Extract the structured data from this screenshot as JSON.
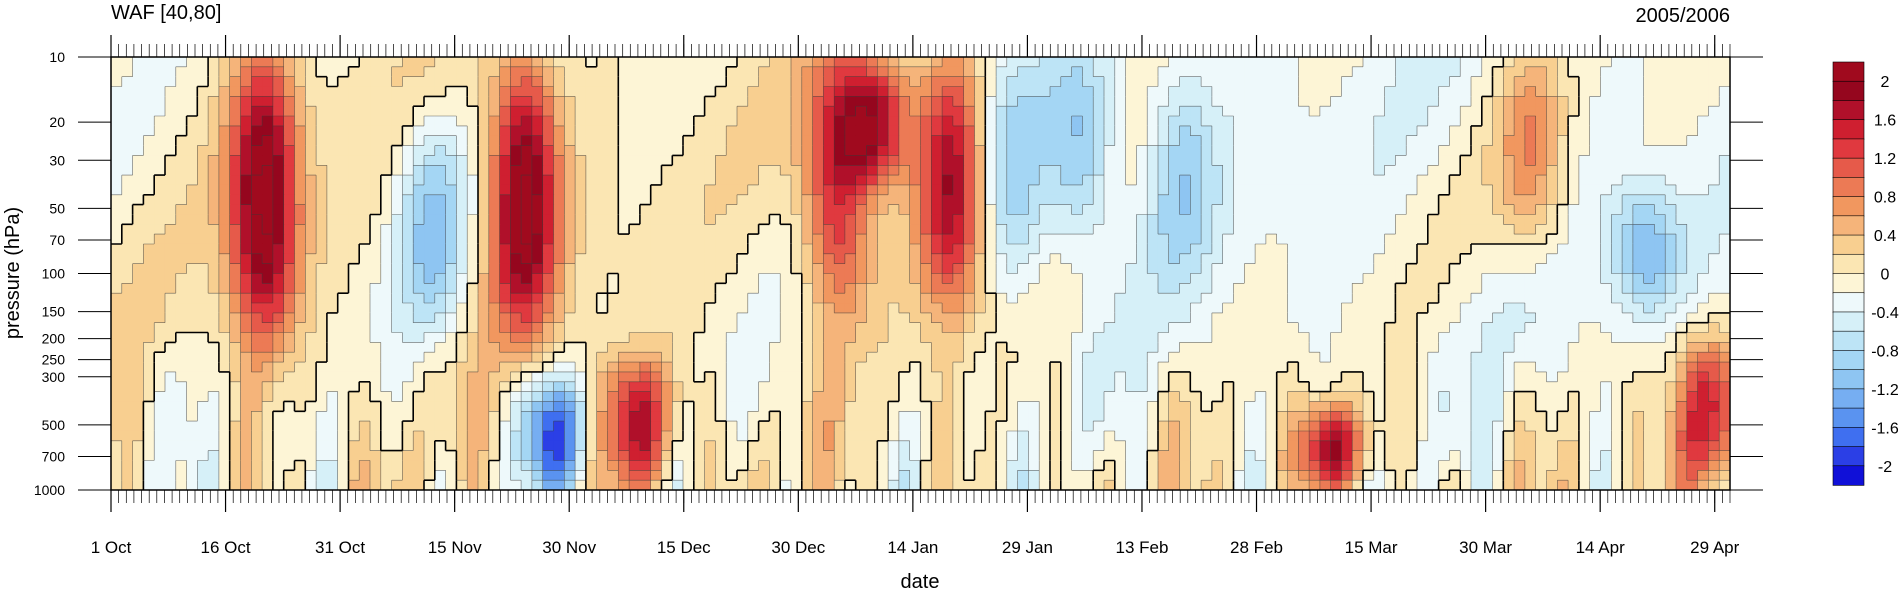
{
  "chart_data": {
    "type": "heatmap",
    "title_left": "WAF [40,80]",
    "title_right": "2005/2006",
    "xlabel": "date",
    "ylabel": "pressure (hPa)",
    "x_tick_labels": [
      "1 Oct",
      "16 Oct",
      "31 Oct",
      "15 Nov",
      "30 Nov",
      "15 Dec",
      "30 Dec",
      "14 Jan",
      "29 Jan",
      "13 Feb",
      "28 Feb",
      "15 Mar",
      "30 Mar",
      "14 Apr",
      "29 Apr"
    ],
    "x_start": "2005-10-01",
    "x_end": "2006-05-01",
    "y_scale": "log",
    "y_reversed": true,
    "ylim": [
      1000,
      10
    ],
    "y_ticks": [
      10,
      20,
      30,
      50,
      70,
      100,
      150,
      200,
      250,
      300,
      500,
      700,
      1000
    ],
    "colorbar": {
      "tick_labels": [
        "2",
        "1.6",
        "1.2",
        "0.8",
        "0.4",
        "0",
        "-0.4",
        "-0.8",
        "-1.2",
        "-1.6",
        "-2"
      ],
      "tick_values": [
        2,
        1.6,
        1.2,
        0.8,
        0.4,
        0,
        -0.4,
        -0.8,
        -1.2,
        -1.6,
        -2
      ],
      "levels": [
        -2.2,
        -2,
        -1.8,
        -1.6,
        -1.4,
        -1.2,
        -1,
        -0.8,
        -0.6,
        -0.4,
        -0.2,
        0,
        0.2,
        0.4,
        0.6,
        0.8,
        1,
        1.2,
        1.4,
        1.6,
        1.8,
        2,
        2.2
      ],
      "colors": [
        "#1010d8",
        "#2b3fe6",
        "#3f6ff0",
        "#5a93f0",
        "#76aef2",
        "#8ec5f2",
        "#a4d6f4",
        "#bde4f6",
        "#d6f0f8",
        "#eef9fb",
        "#fdf5d6",
        "#fbe6b3",
        "#f8cf90",
        "#f5b47a",
        "#f1975f",
        "#ec7a55",
        "#e65a4a",
        "#e0393f",
        "#cf1f30",
        "#b0102a",
        "#95061e",
        "#a00a1e"
      ]
    },
    "features": [
      {
        "date": "2005-10-21",
        "p_top": 10,
        "p_bottom": 220,
        "peak": 2.3,
        "label": "strong positive"
      },
      {
        "date": "2005-11-24",
        "p_top": 10,
        "p_bottom": 180,
        "peak": 2.3,
        "label": "strong positive"
      },
      {
        "date": "2006-01-04",
        "p_top": 10,
        "p_bottom": 150,
        "peak": 1.6,
        "label": "positive"
      },
      {
        "date": "2006-01-19",
        "p_top": 10,
        "p_bottom": 150,
        "peak": 1.9,
        "label": "positive"
      },
      {
        "date": "2006-01-09",
        "p_top": 10,
        "p_bottom": 40,
        "peak": 1.8,
        "label": "positive"
      },
      {
        "date": "2006-04-05",
        "p_top": 10,
        "p_bottom": 80,
        "peak": 0.9,
        "label": "positive"
      },
      {
        "date": "2005-11-12",
        "p_top": 20,
        "p_bottom": 200,
        "peak": -0.9,
        "label": "negative"
      },
      {
        "date": "2006-01-27",
        "p_top": 10,
        "p_bottom": 120,
        "peak": -0.8,
        "label": "negative"
      },
      {
        "date": "2006-02-05",
        "p_top": 10,
        "p_bottom": 80,
        "peak": -0.9,
        "label": "negative"
      },
      {
        "date": "2006-02-18",
        "p_top": 10,
        "p_bottom": 100,
        "peak": -0.7,
        "label": "negative"
      },
      {
        "date": "2006-04-20",
        "p_top": 40,
        "p_bottom": 150,
        "peak": -0.9,
        "label": "negative"
      },
      {
        "date": "2005-12-09",
        "p_top": 250,
        "p_bottom": 1000,
        "peak": 1.8,
        "label": "tropospheric positive"
      },
      {
        "date": "2006-03-10",
        "p_top": 400,
        "p_bottom": 1000,
        "peak": 1.7,
        "label": "tropospheric positive"
      },
      {
        "date": "2006-04-28",
        "p_top": 200,
        "p_bottom": 1000,
        "peak": 1.6,
        "label": "tropospheric positive"
      },
      {
        "date": "2005-11-28",
        "p_top": 300,
        "p_bottom": 1000,
        "peak": -1.6,
        "label": "tropospheric negative"
      }
    ]
  }
}
